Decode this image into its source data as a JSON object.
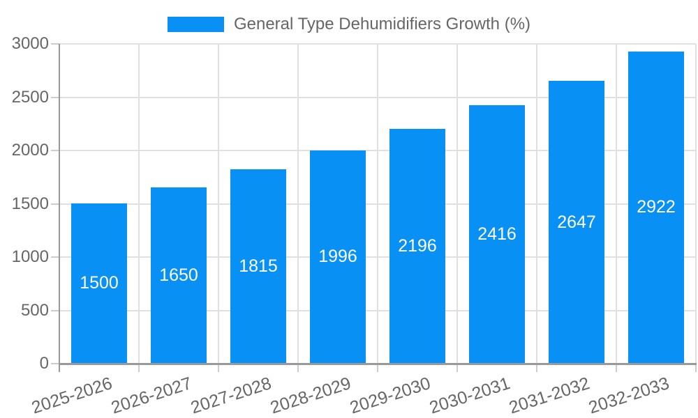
{
  "legend": {
    "label": "General Type Dehumidifiers Growth (%)"
  },
  "chart_data": {
    "type": "bar",
    "title": "General Type Dehumidifiers Growth (%)",
    "series_name": "General Type Dehumidifiers Growth (%)",
    "categories": [
      "2025-2026",
      "2026-2027",
      "2027-2028",
      "2028-2029",
      "2029-2030",
      "2030-2031",
      "2031-2032",
      "2032-2033"
    ],
    "values": [
      1500,
      1650,
      1815,
      1996,
      2196,
      2416,
      2647,
      2922
    ],
    "xlabel": "",
    "ylabel": "",
    "ylim": [
      0,
      3000
    ],
    "y_ticks": [
      0,
      500,
      1000,
      1500,
      2000,
      2500,
      3000
    ],
    "grid": true,
    "legend_position": "top-center",
    "value_labels": "centered-inside-bars",
    "x_label_rotation_deg": -18,
    "colors": {
      "bar": "#0890F4",
      "value_label": "#FFFFFF",
      "tick_label": "#666666",
      "grid_line": "#E0E0E0",
      "axis_line": "#999999",
      "tick_mark": "#CCCCCC",
      "background": "#FFFFFF"
    }
  }
}
